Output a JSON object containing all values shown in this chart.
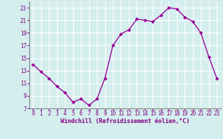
{
  "x": [
    0,
    1,
    2,
    3,
    4,
    5,
    6,
    7,
    8,
    9,
    10,
    11,
    12,
    13,
    14,
    15,
    16,
    17,
    18,
    19,
    20,
    21,
    22,
    23
  ],
  "y": [
    14.0,
    12.8,
    11.8,
    10.5,
    9.5,
    8.0,
    8.5,
    7.5,
    8.5,
    11.8,
    17.0,
    18.8,
    19.5,
    21.2,
    21.0,
    20.8,
    21.8,
    23.0,
    22.8,
    21.5,
    20.8,
    19.0,
    15.2,
    11.8
  ],
  "line_color": "#990099",
  "marker": "D",
  "markersize": 2.2,
  "linewidth": 1.0,
  "xlabel": "Windchill (Refroidissement éolien,°C)",
  "ylim": [
    7,
    24
  ],
  "xlim": [
    -0.5,
    23.5
  ],
  "yticks": [
    7,
    9,
    11,
    13,
    15,
    17,
    19,
    21,
    23
  ],
  "xticks": [
    0,
    1,
    2,
    3,
    4,
    5,
    6,
    7,
    8,
    9,
    10,
    11,
    12,
    13,
    14,
    15,
    16,
    17,
    18,
    19,
    20,
    21,
    22,
    23
  ],
  "bg_color": "#d4eeee",
  "grid_color": "#ffffff",
  "tick_color": "#800080",
  "label_color": "#800080",
  "axis_color": "#808080",
  "tick_fontsize": 5.5,
  "xlabel_fontsize": 6.0
}
